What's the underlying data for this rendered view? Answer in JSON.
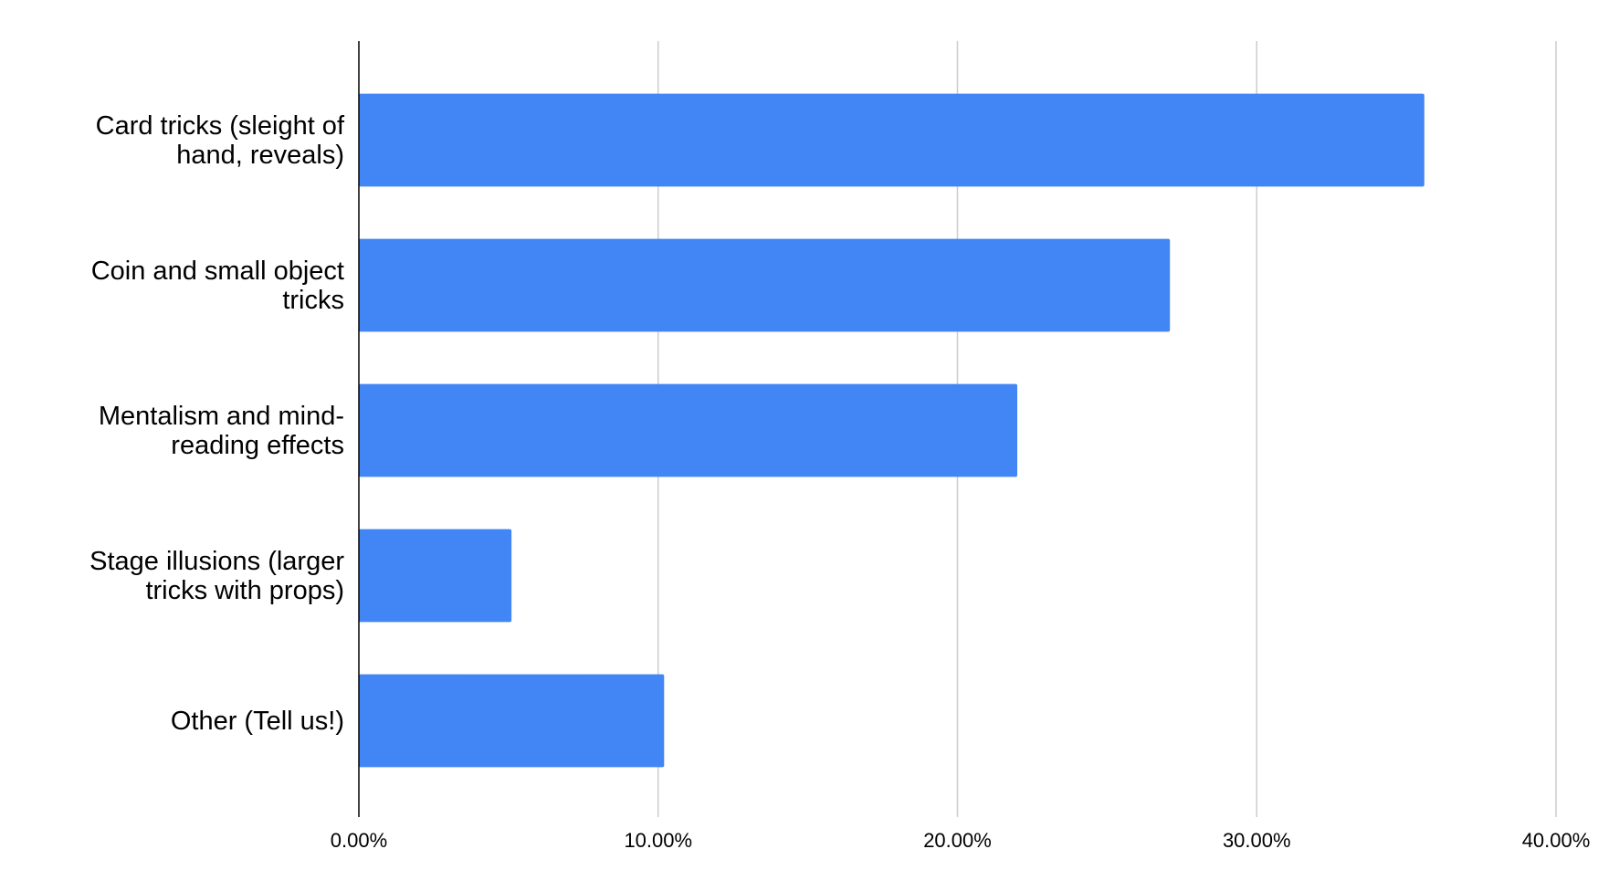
{
  "chart_data": {
    "type": "bar",
    "orientation": "horizontal",
    "categories": [
      "Card tricks (sleight of hand, reveals)",
      "Coin and small object tricks",
      "Mentalism and mind-reading effects",
      "Stage illusions (larger tricks with props)",
      "Other (Tell us!)"
    ],
    "values": [
      35.6,
      27.1,
      22.0,
      5.1,
      10.2
    ],
    "color": "#4285f4",
    "xlim": [
      0,
      40
    ],
    "xticks": [
      {
        "value": 0,
        "label": "0.00%"
      },
      {
        "value": 10,
        "label": "10.00%"
      },
      {
        "value": 20,
        "label": "20.00%"
      },
      {
        "value": 30,
        "label": "30.00%"
      },
      {
        "value": 40,
        "label": "40.00%"
      }
    ],
    "grid": true
  }
}
